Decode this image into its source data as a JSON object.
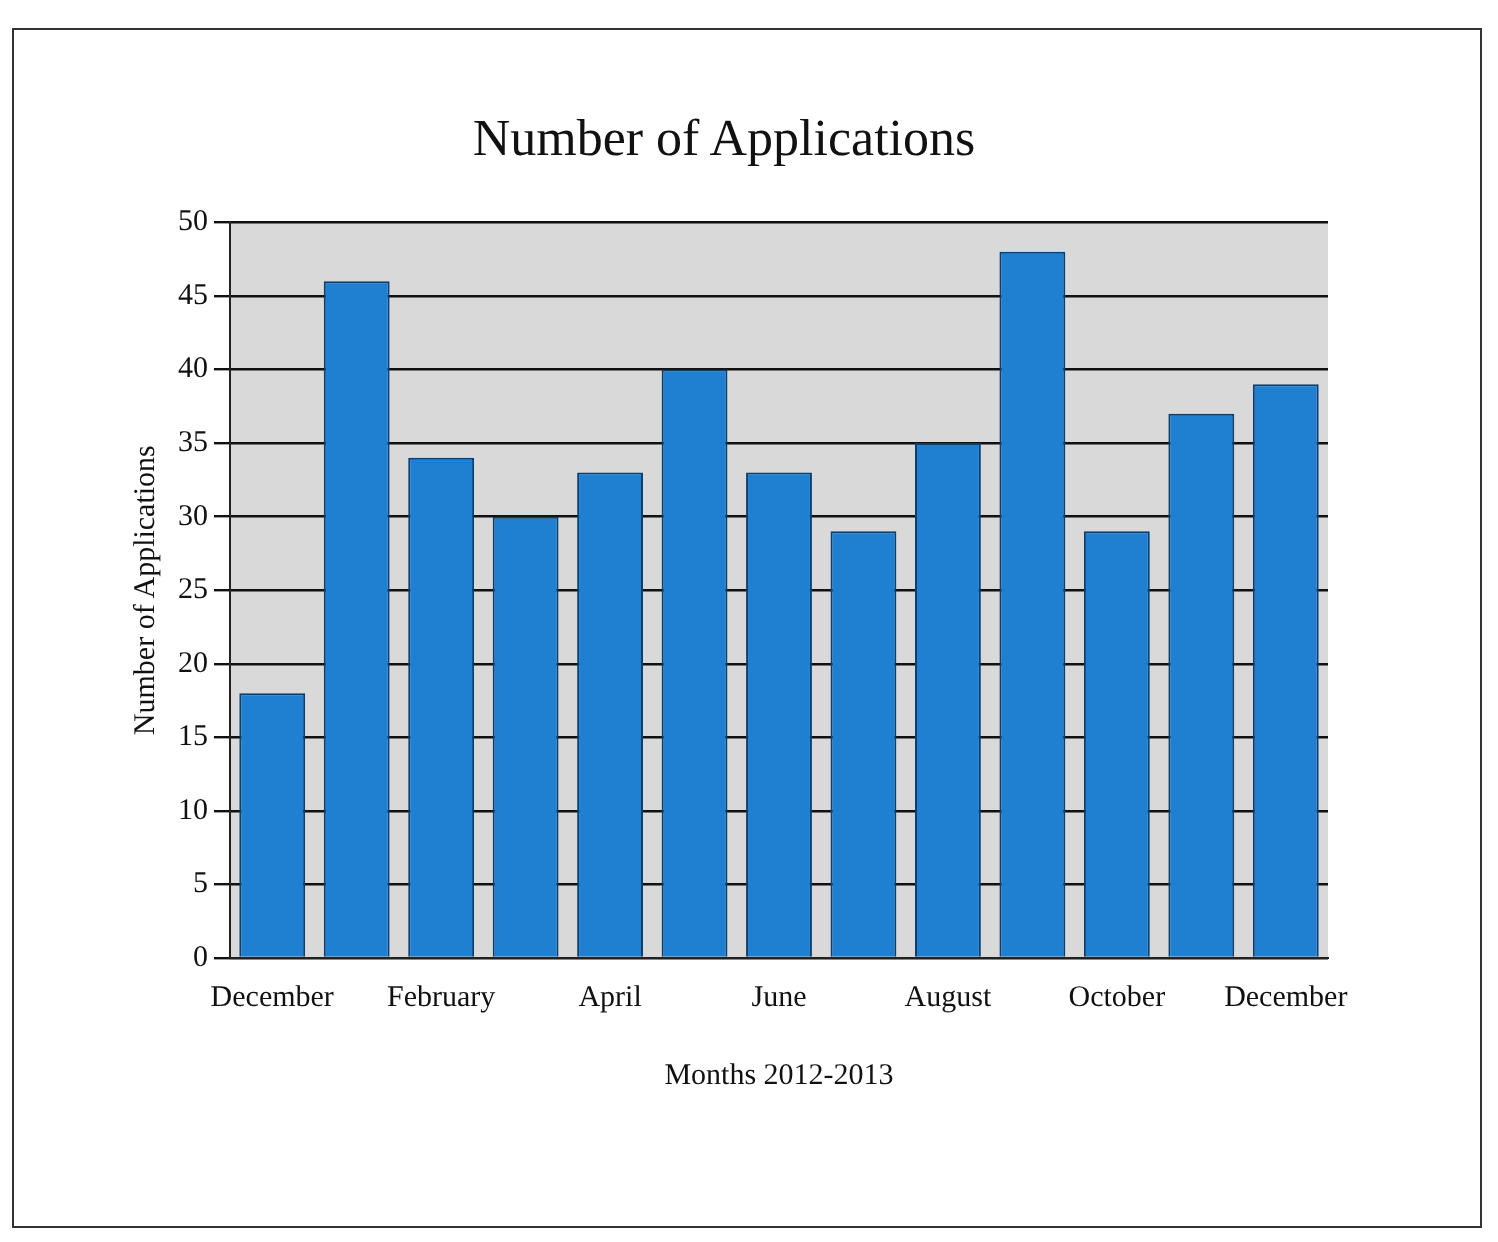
{
  "chart_data": {
    "type": "bar",
    "title": "Number of Applications",
    "xlabel": "Months 2012-2013",
    "ylabel": "Number of Applications",
    "categories": [
      "December",
      null,
      "February",
      null,
      "April",
      null,
      "June",
      null,
      "August",
      null,
      "October",
      null,
      "December"
    ],
    "values": [
      18,
      46,
      34,
      30,
      33,
      40,
      33,
      29,
      35,
      48,
      29,
      37,
      39
    ],
    "color": "#1f7fd0",
    "ylim": [
      0,
      50
    ],
    "yticks": [
      0,
      5,
      10,
      15,
      20,
      25,
      30,
      35,
      40,
      45,
      50
    ],
    "grid": "y",
    "legend": false
  }
}
